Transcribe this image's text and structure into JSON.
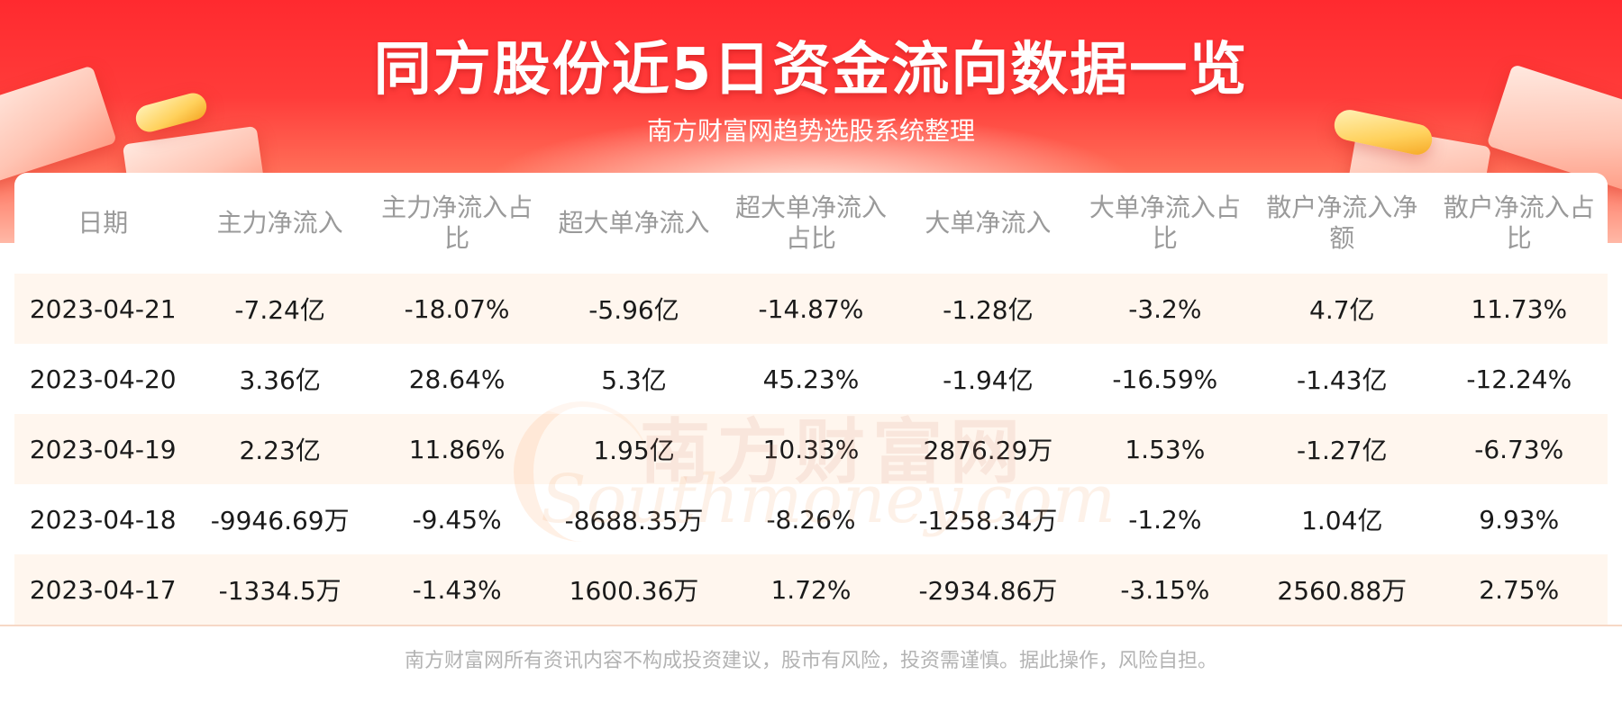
{
  "header": {
    "title": "同方股份近5日资金流向数据一览",
    "subtitle": "南方财富网趋势选股系统整理"
  },
  "table": {
    "columns": [
      "日期",
      "主力净流入",
      "主力净流入占比",
      "超大单净流入",
      "超大单净流入占比",
      "大单净流入",
      "大单净流入占比",
      "散户净流入净额",
      "散户净流入占比"
    ],
    "rows": [
      [
        "2023-04-21",
        "-7.24亿",
        "-18.07%",
        "-5.96亿",
        "-14.87%",
        "-1.28亿",
        "-3.2%",
        "4.7亿",
        "11.73%"
      ],
      [
        "2023-04-20",
        "3.36亿",
        "28.64%",
        "5.3亿",
        "45.23%",
        "-1.94亿",
        "-16.59%",
        "-1.43亿",
        "-12.24%"
      ],
      [
        "2023-04-19",
        "2.23亿",
        "11.86%",
        "1.95亿",
        "10.33%",
        "2876.29万",
        "1.53%",
        "-1.27亿",
        "-6.73%"
      ],
      [
        "2023-04-18",
        "-9946.69万",
        "-9.45%",
        "-8688.35万",
        "-8.26%",
        "-1258.34万",
        "-1.2%",
        "1.04亿",
        "9.93%"
      ],
      [
        "2023-04-17",
        "-1334.5万",
        "-1.43%",
        "1600.36万",
        "1.72%",
        "-2934.86万",
        "-3.15%",
        "2560.88万",
        "2.75%"
      ]
    ]
  },
  "watermark": {
    "cn": "南方财富网",
    "en": "Southmoney.com"
  },
  "footer": {
    "disclaimer": "南方财富网所有资讯内容不构成投资建议，股市有风险，投资需谨慎。据此操作，风险自担。"
  },
  "colors": {
    "banner_red": "#ff2a2f",
    "row_stripe": "#fff6ee",
    "header_text": "#9a9a9a",
    "body_text": "#1a1a1a"
  }
}
